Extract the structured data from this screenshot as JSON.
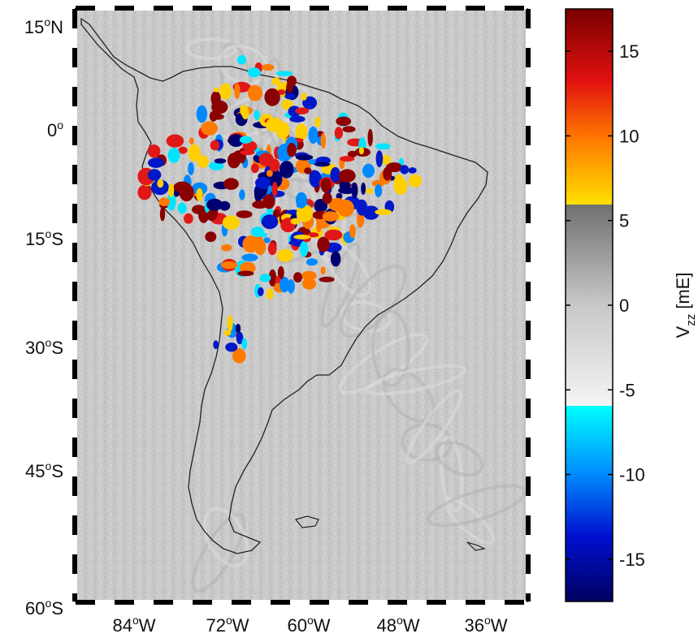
{
  "map": {
    "lat_labels": [
      {
        "value": 15,
        "deg": "15",
        "hemi": "N"
      },
      {
        "value": 0,
        "deg": "0",
        "hemi": ""
      },
      {
        "value": -15,
        "deg": "15",
        "hemi": "S"
      },
      {
        "value": -30,
        "deg": "30",
        "hemi": "S"
      },
      {
        "value": -45,
        "deg": "45",
        "hemi": "S"
      },
      {
        "value": -60,
        "deg": "60",
        "hemi": "S"
      }
    ],
    "lon_labels": [
      {
        "value": -84,
        "deg": "84",
        "hemi": "W"
      },
      {
        "value": -72,
        "deg": "72",
        "hemi": "W"
      },
      {
        "value": -60,
        "deg": "60",
        "hemi": "W"
      },
      {
        "value": -48,
        "deg": "48",
        "hemi": "W"
      },
      {
        "value": -36,
        "deg": "36",
        "hemi": "W"
      }
    ],
    "lon_range": [
      -89,
      -33
    ],
    "lat_range": [
      -60,
      15
    ],
    "background_field": "gray",
    "coastline_color": "#222222"
  },
  "colorbar": {
    "label_main": "V",
    "label_sub": "zz",
    "label_unit": "[mE]",
    "range": [
      -17.5,
      17.5
    ],
    "ticks": [
      {
        "value": 15,
        "label": "15"
      },
      {
        "value": 10,
        "label": "10"
      },
      {
        "value": 5,
        "label": "5"
      },
      {
        "value": 0,
        "label": "0"
      },
      {
        "value": -5,
        "label": "-5"
      },
      {
        "value": -10,
        "label": "-10"
      },
      {
        "value": -15,
        "label": "-15"
      }
    ],
    "gray_band": [
      -6,
      6
    ]
  }
}
